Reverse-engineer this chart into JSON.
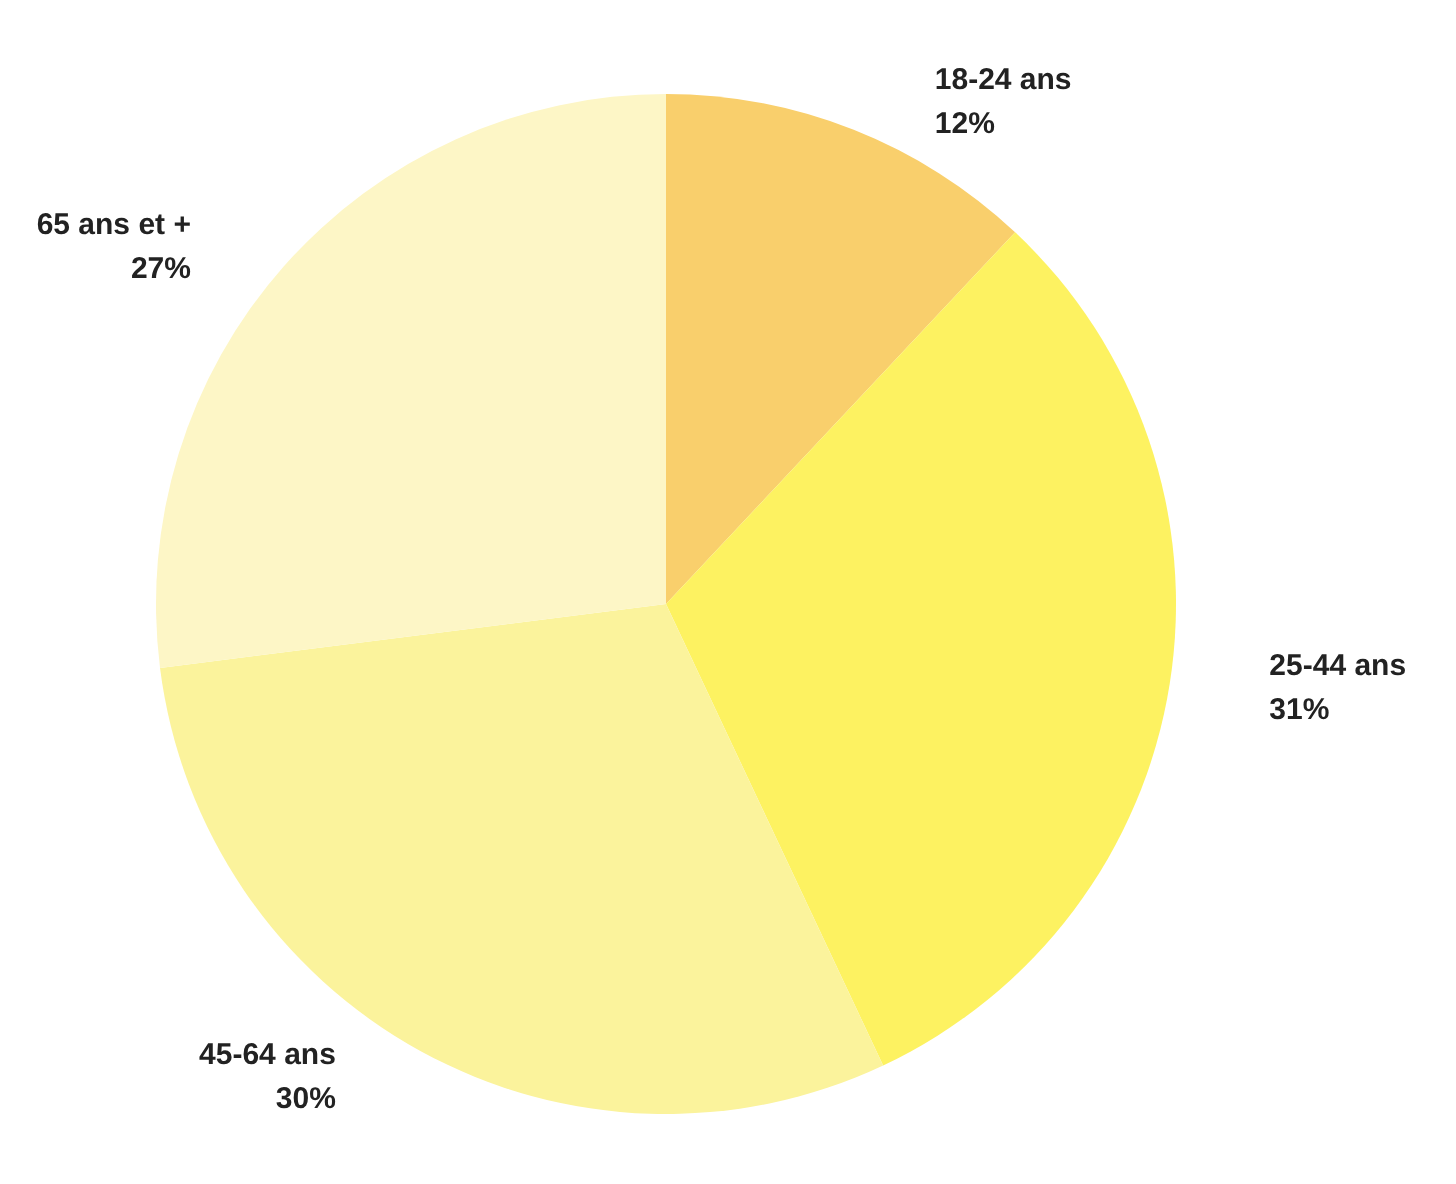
{
  "chart_data": {
    "type": "pie",
    "categories": [
      "18-24 ans",
      "25-44 ans",
      "45-64 ans",
      "65 ans et +"
    ],
    "values": [
      12,
      31,
      30,
      27
    ],
    "colors": [
      "#f9cf6c",
      "#fdf261",
      "#fbf39c",
      "#fdf6c6"
    ],
    "value_labels": [
      "12%",
      "31%",
      "30%",
      "27%"
    ],
    "legend": false
  }
}
